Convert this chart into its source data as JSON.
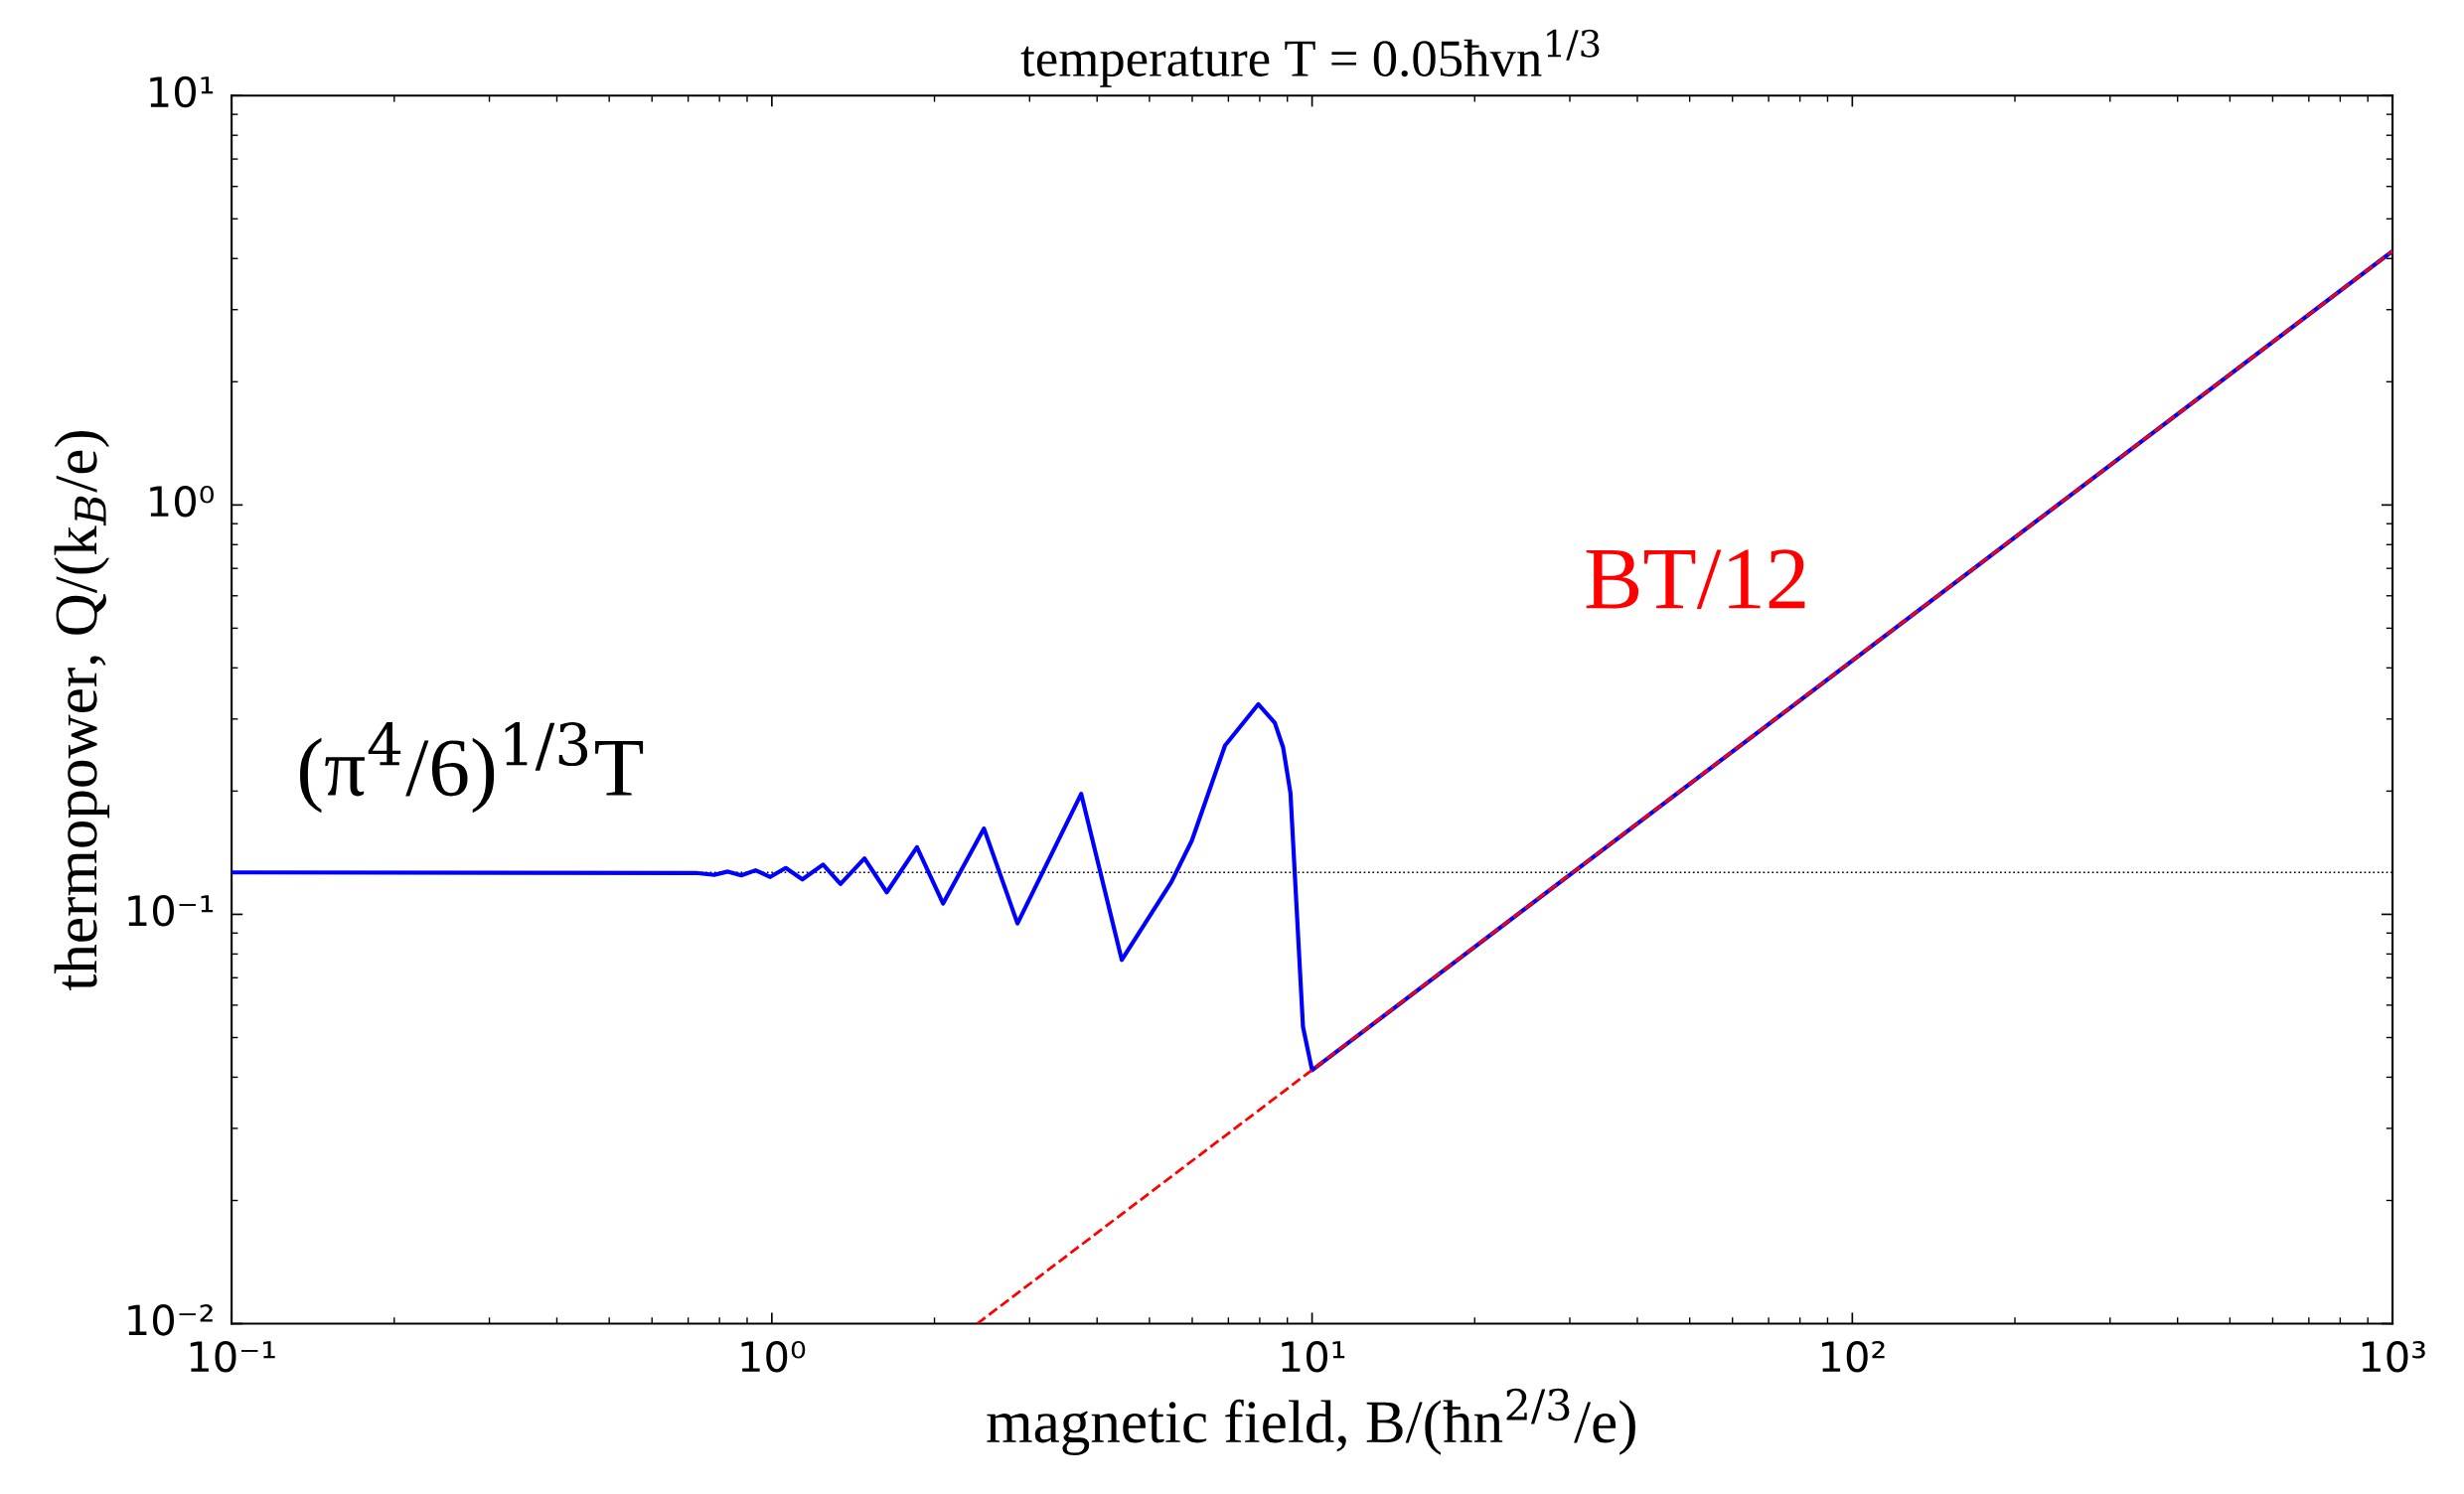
{
  "chart_data": {
    "type": "line",
    "title": "temperature T = 0.05ħvn$^{1/3}$",
    "xlabel": "magnetic field, B/(ħn$^{2/3}$/e)",
    "ylabel": "thermopower, Q/(k$_{B}$/e)",
    "log": "xy",
    "grid": false,
    "legend": false,
    "marker": "none",
    "xlim": [
      0.1,
      1000
    ],
    "ylim": [
      0.01,
      10
    ],
    "xticks": [
      {
        "value": 0.1,
        "label": "10⁻¹"
      },
      {
        "value": 1,
        "label": "10⁰"
      },
      {
        "value": 10,
        "label": "10¹"
      },
      {
        "value": 100,
        "label": "10²"
      },
      {
        "value": 1000,
        "label": "10³"
      }
    ],
    "yticks": [
      {
        "value": 0.01,
        "label": "10⁻²"
      },
      {
        "value": 0.1,
        "label": "10⁻¹"
      },
      {
        "value": 1,
        "label": "10⁰"
      },
      {
        "value": 10,
        "label": "10¹"
      }
    ],
    "series": [
      {
        "color": "#0000ff",
        "line_style": "solid",
        "x": [
          0.1,
          0.723,
          0.782,
          0.829,
          0.878,
          0.933,
          0.993,
          1.061,
          1.139,
          1.244,
          1.34,
          1.484,
          1.632,
          1.856,
          2.075,
          2.47,
          2.849,
          3.738,
          4.443,
          5.49,
          5.99,
          6.9,
          7.95,
          8.53,
          8.84,
          9.12,
          9.62,
          10,
          1000
        ],
        "values": [
          0.1266,
          0.1262,
          0.1248,
          0.1272,
          0.1245,
          0.1281,
          0.1234,
          0.1298,
          0.1217,
          0.1323,
          0.1186,
          0.137,
          0.1132,
          0.1459,
          0.1063,
          0.162,
          0.095,
          0.1969,
          0.0774,
          0.12,
          0.1514,
          0.2585,
          0.326,
          0.2938,
          0.2556,
          0.1978,
          0.0531,
          0.0416,
          4.17
        ]
      },
      {
        "color": "#ff0000",
        "line_style": "dashed",
        "x": [
          2.4,
          1000
        ],
        "values": [
          0.01,
          4.17
        ]
      }
    ],
    "ref_lines": [
      {
        "axis": "y",
        "value": 0.1266,
        "color": "#000000",
        "line_style": "dotted"
      }
    ],
    "annotations": [
      "(π$^{4}$/6)$^{1/3}$T",
      "BT/12"
    ]
  }
}
